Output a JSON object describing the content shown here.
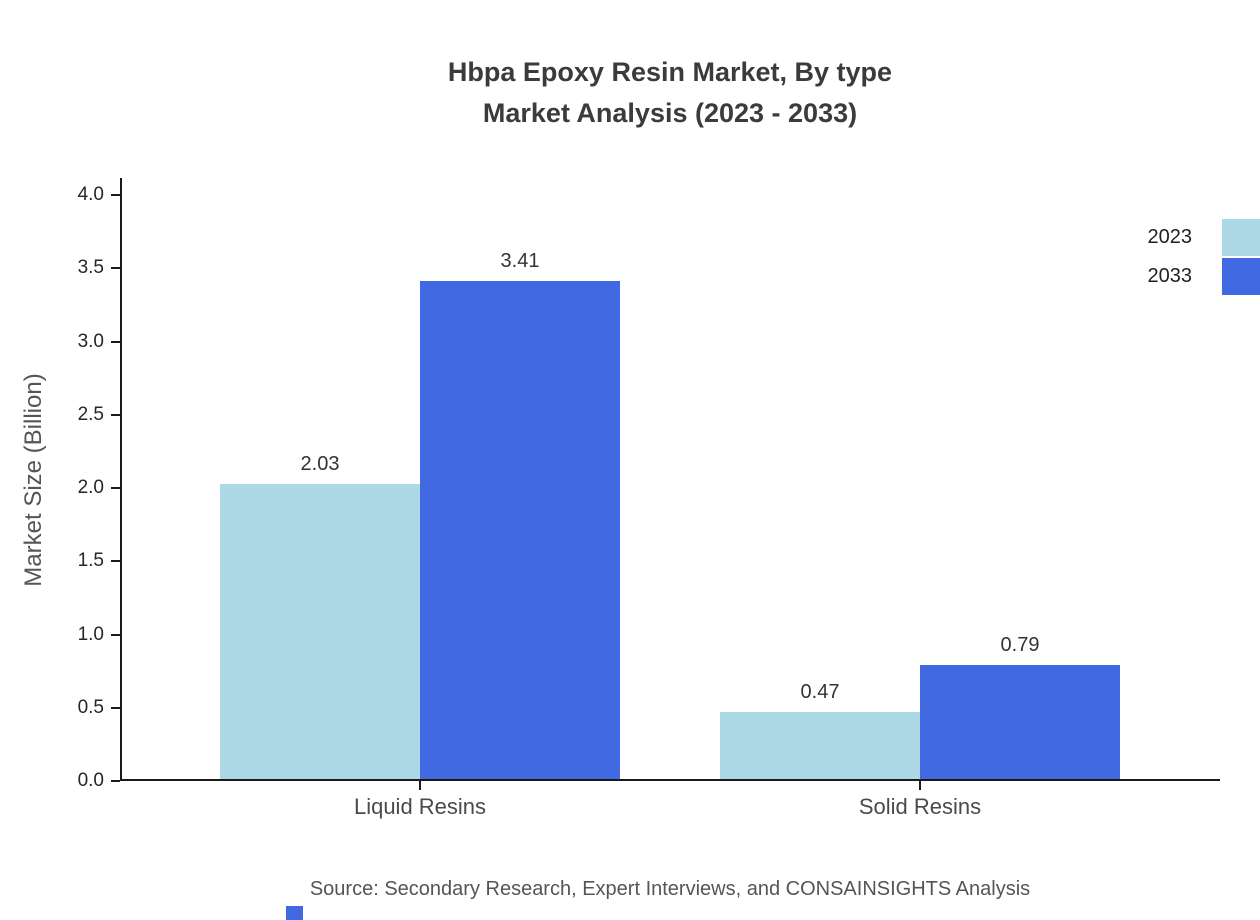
{
  "title": {
    "line1": "Hbpa Epoxy Resin Market, By type",
    "line2": "Market Analysis (2023 - 2033)"
  },
  "source": "Source: Secondary Research, Expert Interviews, and CONSAINSIGHTS Analysis",
  "chart_data": {
    "type": "bar",
    "title": "Hbpa Epoxy Resin Market, By type Market Analysis (2023 - 2033)",
    "categories": [
      "Liquid Resins",
      "Solid Resins"
    ],
    "series": [
      {
        "name": "2023",
        "color": "#ADD8E6",
        "values": [
          2.03,
          0.47
        ]
      },
      {
        "name": "2033",
        "color": "#4169E1",
        "values": [
          3.41,
          0.79
        ]
      }
    ],
    "xlabel": "",
    "ylabel": "Market Size (Billion)",
    "ylim": [
      0,
      4.0
    ],
    "ytick_step": 0.5,
    "grid": false,
    "legend_position": "top-right",
    "value_labels": true
  },
  "colors": {
    "series_2023": "#ADD8E6",
    "series_2033": "#4169E1",
    "axis_line": "#1a1a1a",
    "title_text": "#3b3b3b",
    "muted_text": "#555555",
    "logo_strip": "#4169E1"
  }
}
